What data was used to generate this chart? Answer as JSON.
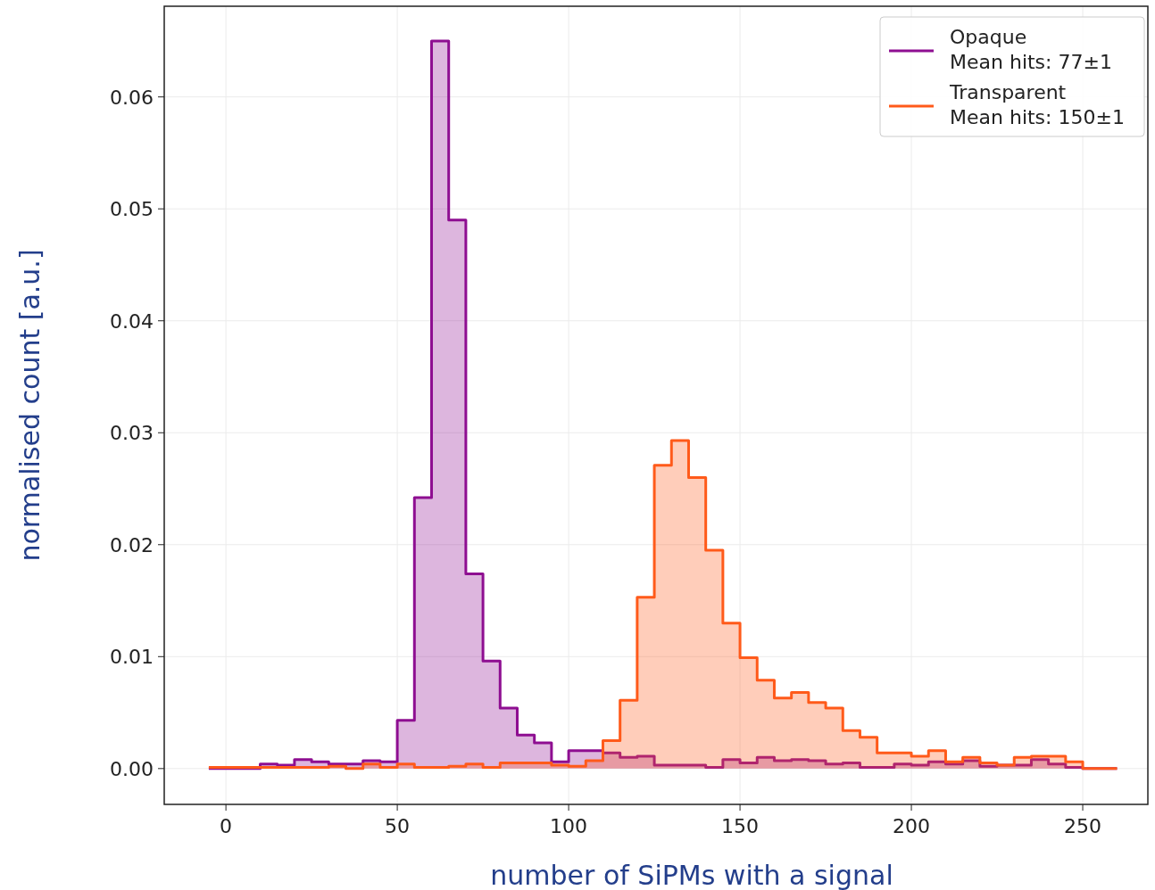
{
  "chart_data": {
    "type": "histogram",
    "xlabel": "number of SiPMs with a signal",
    "ylabel": "normalised count [a.u.]",
    "xlim": [
      -18,
      269
    ],
    "ylim": [
      -0.0032,
      0.0681
    ],
    "xticks": [
      0,
      50,
      100,
      150,
      200,
      250
    ],
    "yticks": [
      {
        "value": 0,
        "label": "0.00"
      },
      {
        "value": 0.01,
        "label": "0.01"
      },
      {
        "value": 0.02,
        "label": "0.02"
      },
      {
        "value": 0.03,
        "label": "0.03"
      },
      {
        "value": 0.04,
        "label": "0.04"
      },
      {
        "value": 0.05,
        "label": "0.05"
      },
      {
        "value": 0.06,
        "label": "0.06"
      }
    ],
    "grid": true,
    "legend": "top right",
    "bins": [
      -5,
      0,
      5,
      10,
      15,
      20,
      25,
      30,
      35,
      40,
      45,
      50,
      55,
      60,
      65,
      70,
      75,
      80,
      85,
      90,
      95,
      100,
      105,
      110,
      115,
      120,
      125,
      130,
      135,
      140,
      145,
      150,
      155,
      160,
      165,
      170,
      175,
      180,
      185,
      190,
      195,
      200,
      205,
      210,
      215,
      220,
      225,
      230,
      235,
      240,
      245,
      250,
      255,
      260
    ],
    "series": [
      {
        "name": "Opaque\nMean hits: 77±1",
        "color": "#8e0e91",
        "values": [
          0,
          0,
          0,
          0.0004,
          0.0003,
          0.0008,
          0.0006,
          0.0004,
          0.0004,
          0.0007,
          0.0006,
          0.0043,
          0.0242,
          0.065,
          0.049,
          0.0174,
          0.0096,
          0.0054,
          0.003,
          0.0023,
          0.0006,
          0.0016,
          0.0016,
          0.0014,
          0.001,
          0.0011,
          0.0003,
          0.0003,
          0.0003,
          0.0001,
          0.0008,
          0.0005,
          0.001,
          0.0007,
          0.0008,
          0.0007,
          0.0004,
          0.0005,
          0.0001,
          0.0001,
          0.0004,
          0.0003,
          0.0006,
          0.0004,
          0.0007,
          0.0002,
          0.0003,
          0.0003,
          0.0008,
          0.0004,
          0.0001,
          0,
          0
        ]
      },
      {
        "name": "Transparent\nMean hits: 150±1",
        "color": "#ff5a1a",
        "values": [
          0.0001,
          0.0001,
          0.0001,
          0.0001,
          0.0001,
          0.0001,
          0.0001,
          0.0002,
          0,
          0.0004,
          0.0001,
          0.0004,
          0.0001,
          0.0001,
          0.0002,
          0.0004,
          0.0001,
          0.0005,
          0.0005,
          0.0005,
          0.0003,
          0.0002,
          0.0007,
          0.0025,
          0.0061,
          0.0153,
          0.0271,
          0.0293,
          0.026,
          0.0195,
          0.013,
          0.0099,
          0.0079,
          0.0063,
          0.0068,
          0.0059,
          0.0054,
          0.0034,
          0.0028,
          0.0014,
          0.0014,
          0.0011,
          0.0016,
          0.0006,
          0.001,
          0.0005,
          0.0003,
          0.001,
          0.0011,
          0.0011,
          0.0006,
          0,
          0
        ]
      }
    ]
  }
}
